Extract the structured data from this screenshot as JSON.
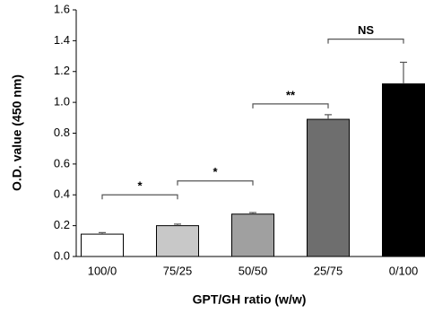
{
  "chart_data": {
    "type": "bar",
    "x_label": "GPT/GH ratio (w/w)",
    "y_label": "O.D. value (450 nm)",
    "categories": [
      "100/0",
      "75/25",
      "50/50",
      "25/75",
      "0/100"
    ],
    "values": [
      0.145,
      0.2,
      0.275,
      0.89,
      1.12
    ],
    "errors": [
      0.01,
      0.01,
      0.01,
      0.03,
      0.14
    ],
    "colors": [
      "#ffffff",
      "#c8c8c8",
      "#a0a0a0",
      "#6e6e6e",
      "#000000"
    ],
    "ylim": [
      0,
      1.6
    ],
    "yticks": [
      {
        "value": 0,
        "label": "0.0"
      },
      0.2,
      0.4,
      0.6,
      0.8,
      {
        "value": 1,
        "label": "1.0"
      },
      1.2,
      1.4,
      1.6
    ],
    "annotations": [
      {
        "text": "*",
        "y": 0.4,
        "between": [
          "100/0",
          "75/25"
        ]
      },
      {
        "text": "*",
        "y": 0.49,
        "between": [
          "75/25",
          "50/50"
        ]
      },
      {
        "text": "**",
        "y": 0.99,
        "between": [
          "50/50",
          "25/75"
        ]
      },
      {
        "text": "NS",
        "y": 1.41,
        "between": [
          "25/75",
          "0/100"
        ]
      }
    ]
  }
}
